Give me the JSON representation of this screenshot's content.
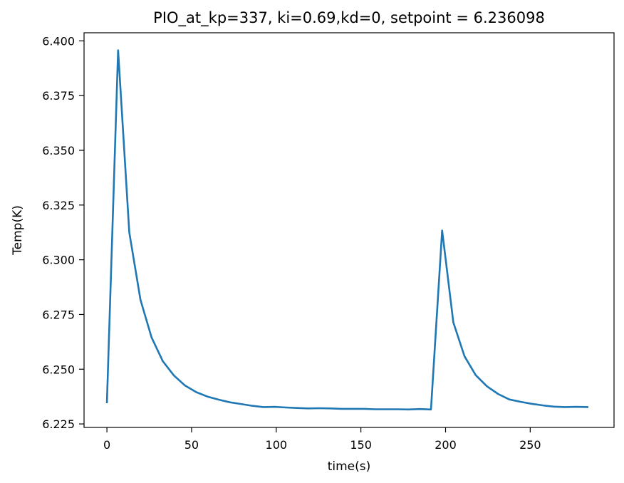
{
  "chart_data": {
    "type": "line",
    "title": "PIO_at_kp=337, ki=0.69,kd=0, setpoint = 6.236098",
    "xlabel": "time(s)",
    "ylabel": "Temp(K)",
    "xlim": [
      -13.5,
      299.5
    ],
    "ylim": [
      6.2234,
      6.4037
    ],
    "xticks": [
      0,
      50,
      100,
      150,
      200,
      250
    ],
    "xtick_labels": [
      "0",
      "50",
      "100",
      "150",
      "200",
      "250"
    ],
    "yticks": [
      6.225,
      6.25,
      6.275,
      6.3,
      6.325,
      6.35,
      6.375,
      6.4
    ],
    "ytick_labels": [
      "6.225",
      "6.250",
      "6.275",
      "6.300",
      "6.325",
      "6.350",
      "6.375",
      "6.400"
    ],
    "grid": false,
    "series": [
      {
        "color": "#1f77b4",
        "x": [
          0,
          6.6,
          13.2,
          19.8,
          26.4,
          33,
          39.6,
          46.2,
          52.8,
          59.4,
          66,
          72.6,
          79.2,
          85.8,
          92.4,
          99,
          105.6,
          112.2,
          118.8,
          125.4,
          132,
          138.6,
          145.2,
          151.8,
          158.4,
          165,
          171.6,
          178.2,
          184.8,
          191.4,
          198,
          204.6,
          211.2,
          217.8,
          224.4,
          231,
          237.6,
          244.2,
          250.8,
          257.4,
          264,
          270.6,
          277.2,
          283.8
        ],
        "y": [
          6.2349,
          6.3957,
          6.3125,
          6.2817,
          6.2645,
          6.2537,
          6.2471,
          6.2425,
          6.2395,
          6.2375,
          6.2361,
          6.2349,
          6.2341,
          6.2333,
          6.2327,
          6.2328,
          6.2325,
          6.2323,
          6.2321,
          6.2322,
          6.2321,
          6.2319,
          6.2319,
          6.2319,
          6.2317,
          6.2317,
          6.2317,
          6.2316,
          6.2318,
          6.2316,
          6.3134,
          6.2714,
          6.2559,
          6.2473,
          6.2422,
          6.2387,
          6.2362,
          6.2351,
          6.2342,
          6.2335,
          6.2329,
          6.2327,
          6.2328,
          6.2327
        ]
      }
    ]
  }
}
